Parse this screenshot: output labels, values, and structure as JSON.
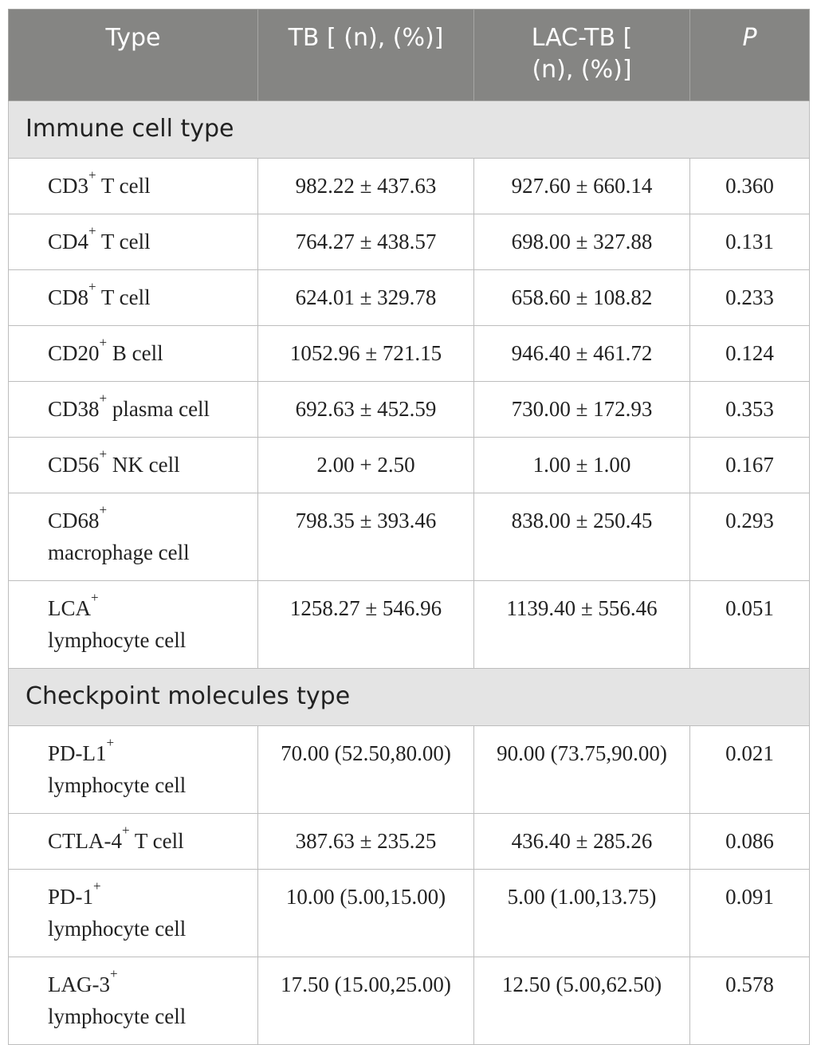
{
  "header": {
    "col1": "Type",
    "col2": "TB [ (n), (%)]",
    "col3_line1": "LAC-TB [",
    "col3_line2": "(n), (%)]",
    "col4": "P"
  },
  "sections": {
    "immune": "Immune cell type",
    "checkpoint": "Checkpoint molecules type"
  },
  "immune_rows": [
    {
      "marker": "CD3",
      "sup": "+",
      "suffix": " T cell",
      "line2": "",
      "tb": "982.22 ± 437.63",
      "lac": "927.60 ± 660.14",
      "p": "0.360"
    },
    {
      "marker": "CD4",
      "sup": "+",
      "suffix": " T cell",
      "line2": "",
      "tb": "764.27 ± 438.57",
      "lac": "698.00 ± 327.88",
      "p": "0.131"
    },
    {
      "marker": "CD8",
      "sup": "+",
      "suffix": " T cell",
      "line2": "",
      "tb": "624.01 ± 329.78",
      "lac": "658.60 ± 108.82",
      "p": "0.233"
    },
    {
      "marker": "CD20",
      "sup": "+",
      "suffix": " B cell",
      "line2": "",
      "tb": "1052.96 ± 721.15",
      "lac": "946.40 ± 461.72",
      "p": "0.124"
    },
    {
      "marker": "CD38",
      "sup": "+",
      "suffix": " plasma cell",
      "line2": "",
      "tb": "692.63 ± 452.59",
      "lac": "730.00 ± 172.93",
      "p": "0.353"
    },
    {
      "marker": "CD56",
      "sup": "+",
      "suffix": " NK cell",
      "line2": "",
      "tb": "2.00 + 2.50",
      "lac": "1.00 ± 1.00",
      "p": "0.167"
    },
    {
      "marker": "CD68",
      "sup": "+",
      "suffix": "",
      "line2": "macrophage cell",
      "tb": "798.35 ± 393.46",
      "lac": "838.00 ± 250.45",
      "p": "0.293"
    },
    {
      "marker": "LCA",
      "sup": "+",
      "suffix": "",
      "line2": "lymphocyte cell",
      "tb": "1258.27 ± 546.96",
      "lac": "1139.40 ± 556.46",
      "p": "0.051"
    }
  ],
  "checkpoint_rows": [
    {
      "marker": "PD-L1",
      "sup": "+",
      "suffix": "",
      "line2": "lymphocyte cell",
      "tb": "70.00 (52.50,80.00)",
      "lac": "90.00 (73.75,90.00)",
      "p": "0.021"
    },
    {
      "marker": "CTLA-4",
      "sup": "+",
      "suffix": " T cell",
      "line2": "",
      "tb": "387.63 ± 235.25",
      "lac": "436.40 ± 285.26",
      "p": "0.086"
    },
    {
      "marker": "PD-1",
      "sup": "+",
      "suffix": "",
      "line2": "lymphocyte cell",
      "tb": "10.00 (5.00,15.00)",
      "lac": "5.00 (1.00,13.75)",
      "p": "0.091"
    },
    {
      "marker": "LAG-3",
      "sup": "+",
      "suffix": "",
      "line2": "lymphocyte cell",
      "tb": "17.50 (15.00,25.00)",
      "lac": "12.50 (5.00,62.50)",
      "p": "0.578"
    }
  ]
}
